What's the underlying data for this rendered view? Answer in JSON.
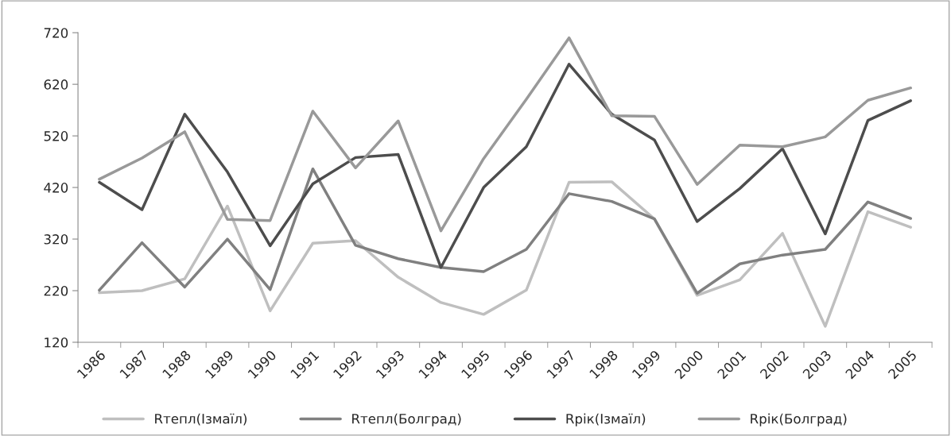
{
  "chart_data": {
    "type": "line",
    "categories": [
      "1986",
      "1987",
      "1988",
      "1989",
      "1990",
      "1991",
      "1992",
      "1993",
      "1994",
      "1995",
      "1996",
      "1997",
      "1998",
      "1999",
      "2000",
      "2001",
      "2002",
      "2003",
      "2004",
      "2005"
    ],
    "series": [
      {
        "name": "Rтепл(Ізмаїл)",
        "color": "#bfbfbf",
        "values": [
          216,
          220,
          243,
          384,
          181,
          312,
          317,
          246,
          197,
          174,
          221,
          430,
          431,
          359,
          211,
          241,
          331,
          151,
          373,
          343
        ]
      },
      {
        "name": "Rтепл(Болград)",
        "color": "#808080",
        "values": [
          221,
          313,
          227,
          320,
          222,
          456,
          308,
          282,
          265,
          257,
          300,
          408,
          393,
          359,
          215,
          272,
          289,
          300,
          392,
          360
        ]
      },
      {
        "name": "Rрік(Ізмаїл)",
        "color": "#4d4d4d",
        "values": [
          430,
          377,
          562,
          450,
          307,
          427,
          478,
          484,
          265,
          420,
          499,
          659,
          562,
          512,
          354,
          418,
          495,
          330,
          550,
          588
        ]
      },
      {
        "name": "Rрік(Болград)",
        "color": "#999999",
        "values": [
          436,
          477,
          528,
          358,
          356,
          568,
          458,
          549,
          336,
          476,
          591,
          710,
          559,
          558,
          426,
          502,
          499,
          518,
          589,
          613
        ]
      }
    ],
    "ylim": [
      120,
      720
    ],
    "yticks": [
      120,
      220,
      320,
      420,
      520,
      620,
      720
    ],
    "grid": false,
    "legend": "bottom",
    "marker": "none",
    "line_style": "solid"
  }
}
